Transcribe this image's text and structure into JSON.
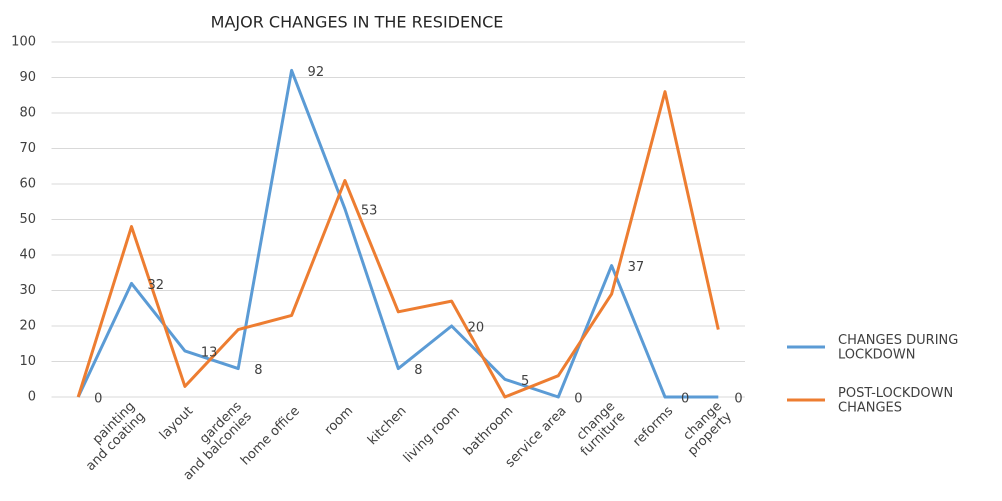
{
  "chart_data": {
    "type": "line",
    "title": "MAJOR CHANGES IN THE RESIDENCE",
    "categories": [
      null,
      "painting\nand coating",
      "layout",
      "gardens\nand balconies",
      "home office",
      "room",
      "kitchen",
      "living room",
      "bathroom",
      "service area",
      "change\nfurniture",
      "reforms",
      "change\nproperty"
    ],
    "series": [
      {
        "name": "CHANGES DURING\nLOCKDOWN",
        "color": "#5b9bd5",
        "values": [
          0,
          32,
          13,
          8,
          92,
          53,
          8,
          20,
          5,
          0,
          37,
          0,
          0
        ],
        "data_labels": true
      },
      {
        "name": "POST-LOCKDOWN\nCHANGES",
        "color": "#ed7d31",
        "values": [
          0,
          48,
          3,
          19,
          23,
          61,
          24,
          27,
          0,
          6,
          29,
          86,
          19
        ],
        "data_labels": false
      }
    ],
    "ylim": [
      0,
      100
    ],
    "yticks": [
      0,
      10,
      20,
      30,
      40,
      50,
      60,
      70,
      80,
      90,
      100
    ],
    "grid": true,
    "legend": "right"
  }
}
